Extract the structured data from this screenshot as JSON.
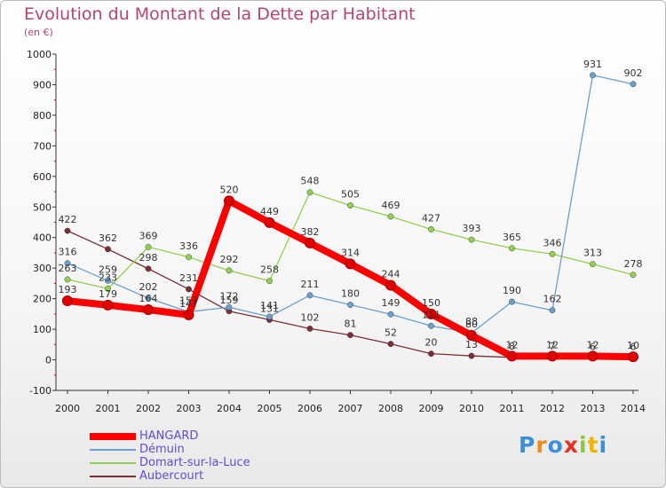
{
  "title": "Evolution du Montant de la Dette par Habitant",
  "unit": "(en €)",
  "logo": "Proxiti",
  "colors": {
    "title": "#b5456f",
    "axis": "#333333",
    "tick_red": "#e00000"
  },
  "chart_data": {
    "type": "line",
    "title": "Evolution du Montant de la Dette par Habitant",
    "subtitle": "(en €)",
    "xlabel": "",
    "ylabel": "",
    "ylim": [
      -100,
      1000
    ],
    "yticks": [
      "-100",
      "0",
      "100",
      "200",
      "300",
      "400",
      "500",
      "600",
      "700",
      "800",
      "900",
      "1000"
    ],
    "categories": [
      "2000",
      "2001",
      "2002",
      "2003",
      "2004",
      "2005",
      "2006",
      "2007",
      "2008",
      "2009",
      "2010",
      "2011",
      "2012",
      "2013",
      "2014"
    ],
    "legend_position": "bottom-left",
    "grid": false,
    "series": [
      {
        "name": "HANGARD",
        "color": "#ff0000",
        "values": [
          193,
          179,
          164,
          147,
          520,
          449,
          382,
          314,
          244,
          150,
          80,
          12,
          12,
          12,
          10
        ]
      },
      {
        "name": "Démuin",
        "color": "#6a9fd0",
        "values": [
          316,
          259,
          202,
          157,
          172,
          141,
          211,
          180,
          149,
          111,
          88,
          190,
          162,
          931,
          902
        ]
      },
      {
        "name": "Domart-sur-la-Luce",
        "color": "#92d050",
        "values": [
          263,
          233,
          369,
          336,
          292,
          258,
          548,
          505,
          469,
          427,
          393,
          365,
          346,
          313,
          278
        ]
      },
      {
        "name": "Aubercourt",
        "color": "#7a2f35",
        "values": [
          422,
          362,
          298,
          231,
          159,
          131,
          102,
          81,
          52,
          20,
          13,
          8,
          7,
          6,
          6
        ]
      }
    ],
    "point_labels": [
      [
        "193",
        "179",
        "164",
        "147",
        "520",
        "449",
        "382",
        "314",
        "244",
        "150",
        "80",
        "12",
        "12",
        "12",
        "10"
      ],
      [
        "316",
        "259",
        "202",
        "157",
        "172",
        "141",
        "211",
        "180",
        "149",
        "111",
        "88",
        "190",
        "162",
        "931",
        "902"
      ],
      [
        "263",
        "233",
        "369",
        "336",
        "292",
        "258",
        "548",
        "505",
        "469",
        "427",
        "393",
        "365",
        "346",
        "313",
        "278"
      ],
      [
        "422",
        "362",
        "298",
        "231",
        "159",
        "131",
        "102",
        "81",
        "52",
        "20",
        "13",
        "8",
        "7",
        "6",
        "6"
      ]
    ]
  }
}
